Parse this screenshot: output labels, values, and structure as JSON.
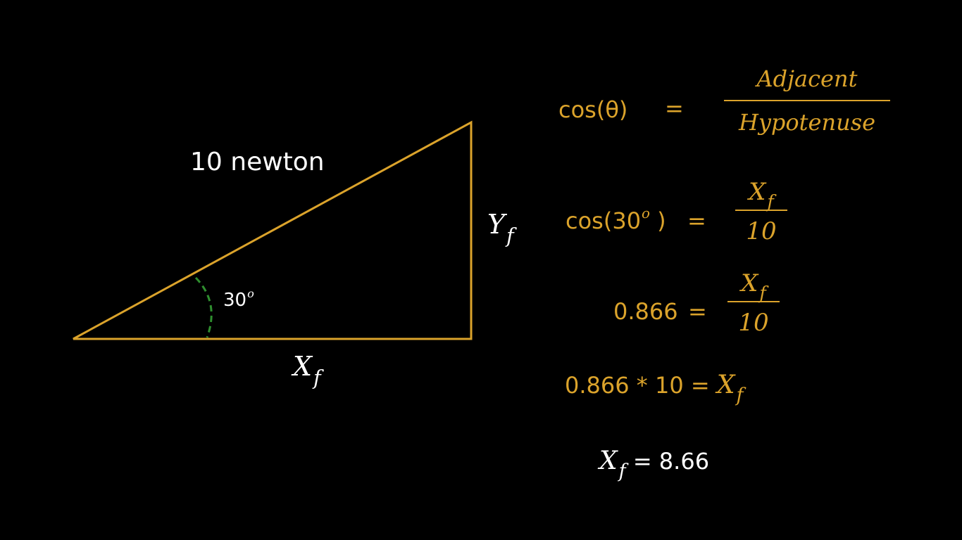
{
  "colors": {
    "background": "#000000",
    "triangle": "#dba32b",
    "angle_arc": "#2f8f2f",
    "equation_text": "#dba32b",
    "label_text": "#ffffff"
  },
  "triangle": {
    "hypotenuse_label": "10 newton",
    "angle_value": "30",
    "angle_unit": "o",
    "vertical_label": "Y",
    "vertical_sub": "f",
    "horizontal_label": "X",
    "horizontal_sub": "f"
  },
  "equations": {
    "eq1": {
      "lhs": "cos(θ)",
      "equals": "=",
      "numerator": "Adjacent",
      "denominator": "Hypotenuse"
    },
    "eq2": {
      "lhs_pre": "cos(30",
      "lhs_sup": "o",
      "lhs_post": " )",
      "equals": "=",
      "numerator": "X",
      "numerator_sub": "f",
      "denominator": "10"
    },
    "eq3": {
      "lhs": "0.866",
      "equals": "=",
      "numerator": "X",
      "numerator_sub": "f",
      "denominator": "10"
    },
    "eq4": {
      "lhs": "0.866 * 10 =",
      "rhs": "X",
      "rhs_sub": "f"
    },
    "eq5": {
      "lhs": "X",
      "lhs_sub": "f",
      "rhs": "= 8.66"
    }
  }
}
